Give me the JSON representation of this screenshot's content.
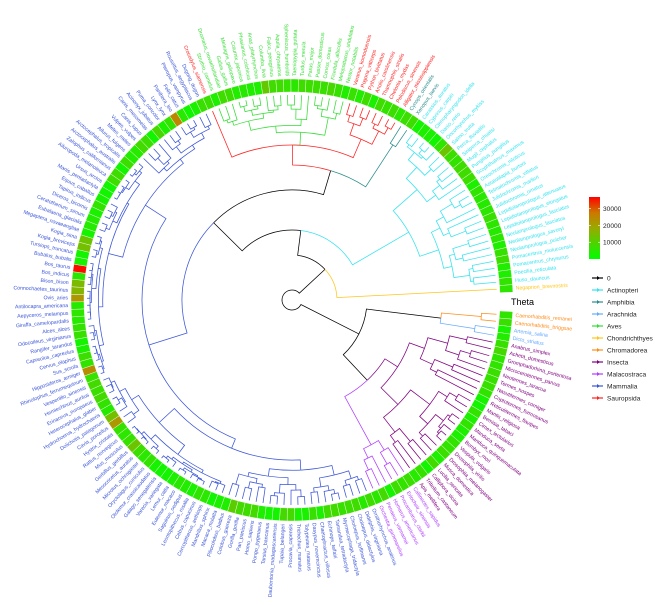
{
  "theta_label": "Theta",
  "colorbar": {
    "ticks": [
      "10000",
      "20000",
      "30000"
    ],
    "tick_values": [
      10000,
      20000,
      30000
    ],
    "min": 0,
    "max": 37000,
    "colors": [
      "#00ff00",
      "#99aa00",
      "#cc7700",
      "#ff0000"
    ]
  },
  "legend": [
    {
      "label": "0",
      "color": "#000000"
    },
    {
      "label": "Actinopteri",
      "color": "#33e3f0"
    },
    {
      "label": "Amphibia",
      "color": "#2b8c8c"
    },
    {
      "label": "Arachnida",
      "color": "#66aaff"
    },
    {
      "label": "Aves",
      "color": "#33dd33"
    },
    {
      "label": "Chondrichthyes",
      "color": "#ffc61a"
    },
    {
      "label": "Chromadorea",
      "color": "#ff8c1a"
    },
    {
      "label": "Insecta",
      "color": "#800080"
    },
    {
      "label": "Malacostraca",
      "color": "#b03cff"
    },
    {
      "label": "Mammalia",
      "color": "#3a55d8"
    },
    {
      "label": "Sauropsida",
      "color": "#ff2020"
    }
  ],
  "tips": [
    {
      "label": "Caenorhabditis_remanei",
      "class": "Chromadorea"
    },
    {
      "label": "Caenorhabditis_briggsae",
      "class": "Chromadorea"
    },
    {
      "label": "Artemia_salina",
      "class": "Arachnida"
    },
    {
      "label": "Dicto_striatus",
      "class": "Arachnida"
    },
    {
      "label": "Anabrus_simplex",
      "class": "Insecta"
    },
    {
      "label": "Acheta_domesticus",
      "class": "Insecta"
    },
    {
      "label": "Gromphadorhina_portentosa",
      "class": "Insecta"
    },
    {
      "label": "Microcerotermes_parvus",
      "class": "Insecta"
    },
    {
      "label": "Neotermes_taracua",
      "class": "Insecta"
    },
    {
      "label": "Termes_hospes",
      "class": "Insecta"
    },
    {
      "label": "Nasutitermes_corniger",
      "class": "Insecta"
    },
    {
      "label": "Coptotermes_formosanus",
      "class": "Insecta"
    },
    {
      "label": "Reticulitermes_flavipes",
      "class": "Insecta"
    },
    {
      "label": "Mantis_religiosa",
      "class": "Insecta"
    },
    {
      "label": "Bemisia_tabaci",
      "class": "Insecta"
    },
    {
      "label": "Cimex_lectularius",
      "class": "Insecta"
    },
    {
      "label": "Manduca_sexta",
      "class": "Insecta"
    },
    {
      "label": "Manduca_quinquemaculata",
      "class": "Insecta"
    },
    {
      "label": "Bombyx_mori",
      "class": "Insecta"
    },
    {
      "label": "Vespula_vulgaris",
      "class": "Insecta"
    },
    {
      "label": "Drosophila_virilis",
      "class": "Insecta"
    },
    {
      "label": "Drosophila_melanogaster",
      "class": "Insecta"
    },
    {
      "label": "Musca_domestica",
      "class": "Insecta"
    },
    {
      "label": "Lucilia_sericata",
      "class": "Insecta"
    },
    {
      "label": "Calliphora_vicina",
      "class": "Insecta"
    },
    {
      "label": "Tribolium_castaneum",
      "class": "Insecta"
    },
    {
      "label": "Apis_mellifera",
      "class": "Insecta"
    },
    {
      "label": "Callinectes_sapidus",
      "class": "Malacostraca"
    },
    {
      "label": "Eriocheir_sinensis",
      "class": "Malacostraca"
    },
    {
      "label": "Procambarus_clarkii",
      "class": "Malacostraca"
    },
    {
      "label": "Homarus_americanus",
      "class": "Malacostraca"
    },
    {
      "label": "Penaeus_vannamei",
      "class": "Malacostraca"
    },
    {
      "label": "Orchestia_gammarellus",
      "class": "Malacostraca"
    },
    {
      "label": "Ornithorhynchus_anatinus",
      "class": "Mammalia"
    },
    {
      "label": "Didelphis_virginiana",
      "class": "Mammalia"
    },
    {
      "label": "Choloepus_didactylus",
      "class": "Mammalia"
    },
    {
      "label": "Choloepus_hoffmanni",
      "class": "Mammalia"
    },
    {
      "label": "Myrmecophaga_tridactyla",
      "class": "Mammalia"
    },
    {
      "label": "Tamandua_tetradactyla",
      "class": "Mammalia"
    },
    {
      "label": "Echinops_telfairi",
      "class": "Mammalia"
    },
    {
      "label": "Chaetophractus_villosus",
      "class": "Mammalia"
    },
    {
      "label": "Dasypus_novemcinctus",
      "class": "Mammalia"
    },
    {
      "label": "Tolypeutes_matacus",
      "class": "Mammalia"
    },
    {
      "label": "Trichechus_manatus",
      "class": "Mammalia"
    },
    {
      "label": "Procavia_capensis",
      "class": "Mammalia"
    },
    {
      "label": "Tupaia_belangeri",
      "class": "Mammalia"
    },
    {
      "label": "Daubentonia_madagascariensis",
      "class": "Mammalia"
    },
    {
      "label": "Tarsius_bancanus",
      "class": "Mammalia"
    },
    {
      "label": "Pongo_pygmaeus",
      "class": "Mammalia"
    },
    {
      "label": "Homo_sapiens",
      "class": "Mammalia"
    },
    {
      "label": "Pan_paniscus",
      "class": "Mammalia"
    },
    {
      "label": "Gorilla_gorilla",
      "class": "Mammalia"
    },
    {
      "label": "Colobus_guereza",
      "class": "Mammalia"
    },
    {
      "label": "Piliocolobus_badius",
      "class": "Mammalia"
    },
    {
      "label": "Macaca_mulatta",
      "class": "Mammalia"
    },
    {
      "label": "Mandrillus_sphinx",
      "class": "Mammalia"
    },
    {
      "label": "Cercopithecus_aethiops",
      "class": "Mammalia"
    },
    {
      "label": "Cebus_capucinus",
      "class": "Mammalia"
    },
    {
      "label": "Leontopithecus_rosalia",
      "class": "Mammalia"
    },
    {
      "label": "Saguinus_oedipus",
      "class": "Mammalia"
    },
    {
      "label": "Eulemur_macaco",
      "class": "Mammalia"
    },
    {
      "label": "Lemur_catta",
      "class": "Mammalia"
    },
    {
      "label": "Varecia_variegata",
      "class": "Mammalia"
    },
    {
      "label": "Galago_senegalensis",
      "class": "Mammalia"
    },
    {
      "label": "Otolemur_crassicaudatus",
      "class": "Mammalia"
    },
    {
      "label": "Oryctolagus_cuniculus",
      "class": "Mammalia"
    },
    {
      "label": "Microtus_ochrogaster",
      "class": "Mammalia"
    },
    {
      "label": "Mesocricetus_auratus",
      "class": "Mammalia"
    },
    {
      "label": "Gerbillus_gerbillus",
      "class": "Mammalia"
    },
    {
      "label": "Mus_musculus",
      "class": "Mammalia"
    },
    {
      "label": "Rattus_norvegicus",
      "class": "Mammalia"
    },
    {
      "label": "Hystrix_cristata",
      "class": "Mammalia"
    },
    {
      "label": "Cavia_porcellus",
      "class": "Mammalia"
    },
    {
      "label": "Dolichotis_patagonum",
      "class": "Mammalia"
    },
    {
      "label": "Hydrochoerus_hydrochaeris",
      "class": "Mammalia"
    },
    {
      "label": "Heterocephalus_glaber",
      "class": "Mammalia"
    },
    {
      "label": "Erinaceus_europaeus",
      "class": "Mammalia"
    },
    {
      "label": "Hemiechinus_auritus",
      "class": "Mammalia"
    },
    {
      "label": "Vespertilio_sinensis",
      "class": "Mammalia"
    },
    {
      "label": "Rhinolophus_ferrumequinum",
      "class": "Mammalia"
    },
    {
      "label": "Hipposideros_armiger",
      "class": "Mammalia"
    },
    {
      "label": "Sus_scrofa",
      "class": "Mammalia"
    },
    {
      "label": "Cervus_elaphus",
      "class": "Mammalia"
    },
    {
      "label": "Capreolus_capreolus",
      "class": "Mammalia"
    },
    {
      "label": "Rangifer_tarandus",
      "class": "Mammalia"
    },
    {
      "label": "Odocoileus_virginianus",
      "class": "Mammalia"
    },
    {
      "label": "Alces_alces",
      "class": "Mammalia"
    },
    {
      "label": "Giraffa_camelopardalis",
      "class": "Mammalia"
    },
    {
      "label": "Aepyceros_melampus",
      "class": "Mammalia"
    },
    {
      "label": "Antilocapra_americana",
      "class": "Mammalia"
    },
    {
      "label": "Ovis_aries",
      "class": "Mammalia"
    },
    {
      "label": "Connochaetes_taurinus",
      "class": "Mammalia"
    },
    {
      "label": "Bison_bison",
      "class": "Mammalia"
    },
    {
      "label": "Bos_indicus",
      "class": "Mammalia"
    },
    {
      "label": "Bos_taurus",
      "class": "Mammalia"
    },
    {
      "label": "Bubalus_bubalis",
      "class": "Mammalia"
    },
    {
      "label": "Tursiops_truncatus",
      "class": "Mammalia"
    },
    {
      "label": "Kogia_breviceps",
      "class": "Mammalia"
    },
    {
      "label": "Kogia_sima",
      "class": "Mammalia"
    },
    {
      "label": "Megaptera_novaeangliae",
      "class": "Mammalia"
    },
    {
      "label": "Eubalaena_glacialis",
      "class": "Mammalia"
    },
    {
      "label": "Ceratotherium_simum",
      "class": "Mammalia"
    },
    {
      "label": "Diceros_bicornis",
      "class": "Mammalia"
    },
    {
      "label": "Tapirus_indicus",
      "class": "Mammalia"
    },
    {
      "label": "Equus_caballus",
      "class": "Mammalia"
    },
    {
      "label": "Manis_pentadactyla",
      "class": "Mammalia"
    },
    {
      "label": "Ursus_arctos",
      "class": "Mammalia"
    },
    {
      "label": "Ailuropoda_melanoleuca",
      "class": "Mammalia"
    },
    {
      "label": "Zalophus_californianus",
      "class": "Mammalia"
    },
    {
      "label": "Arctocephalus_australis",
      "class": "Mammalia"
    },
    {
      "label": "Arctocephalus_tropicalis",
      "class": "Mammalia"
    },
    {
      "label": "Ailurus_fulgens",
      "class": "Mammalia"
    },
    {
      "label": "Meles_meles",
      "class": "Mammalia"
    },
    {
      "label": "Vulpes_vulpes",
      "class": "Mammalia"
    },
    {
      "label": "Canis_lupus",
      "class": "Mammalia"
    },
    {
      "label": "Canis_mesomelas",
      "class": "Mammalia"
    },
    {
      "label": "Acinonyx_jubatus",
      "class": "Mammalia"
    },
    {
      "label": "Puma_concolor",
      "class": "Mammalia"
    },
    {
      "label": "Lynx_lynx",
      "class": "Mammalia"
    },
    {
      "label": "Panthera_leo",
      "class": "Mammalia"
    },
    {
      "label": "Felis_catus",
      "class": "Mammalia"
    },
    {
      "label": "Pteropus_vampyrus",
      "class": "Mammalia"
    },
    {
      "label": "Rousettus_aegyptiacus",
      "class": "Mammalia"
    },
    {
      "label": "Dugong_dugon",
      "class": "Mammalia"
    },
    {
      "label": "Crocodylus_siamensis",
      "class": "Sauropsida"
    },
    {
      "label": "Struthio_camelus",
      "class": "Aves"
    },
    {
      "label": "Dromaius_novaehollandiae",
      "class": "Aves"
    },
    {
      "label": "Gallus_gallus",
      "class": "Aves"
    },
    {
      "label": "Meleagris_gallopavo",
      "class": "Aves"
    },
    {
      "label": "Coturnix_japonica",
      "class": "Aves"
    },
    {
      "label": "Phasianus_colchicus",
      "class": "Aves"
    },
    {
      "label": "Anas_platyrhynchos",
      "class": "Aves"
    },
    {
      "label": "Columba_livia",
      "class": "Aves"
    },
    {
      "label": "Falco_peregrinus",
      "class": "Aves"
    },
    {
      "label": "Aquila_chrysaetos",
      "class": "Aves"
    },
    {
      "label": "Spheniscus_humboldti",
      "class": "Aves"
    },
    {
      "label": "Taeniopygia_guttata",
      "class": "Aves"
    },
    {
      "label": "Turdus_merula",
      "class": "Aves"
    },
    {
      "label": "Parus_major",
      "class": "Aves"
    },
    {
      "label": "Passer_domesticus",
      "class": "Aves"
    },
    {
      "label": "Corvus_corax",
      "class": "Aves"
    },
    {
      "label": "Ficedula_albicollis",
      "class": "Aves"
    },
    {
      "label": "Melopsittacus_undulatus",
      "class": "Aves"
    },
    {
      "label": "Nestor_notabilis",
      "class": "Aves"
    },
    {
      "label": "Varanus_komodoensis",
      "class": "Sauropsida"
    },
    {
      "label": "Pogona_vitticeps",
      "class": "Sauropsida"
    },
    {
      "label": "Python_bivittatus",
      "class": "Sauropsida"
    },
    {
      "label": "Anolis_carolinensis",
      "class": "Sauropsida"
    },
    {
      "label": "Thamnophis_sirtalis",
      "class": "Sauropsida"
    },
    {
      "label": "Chelonia_mydas",
      "class": "Sauropsida"
    },
    {
      "label": "Pelodiscus_sinensis",
      "class": "Sauropsida"
    },
    {
      "label": "Alligator_mississippiensis",
      "class": "Sauropsida"
    },
    {
      "label": "Cynops_orientalis",
      "class": "Amphibia"
    },
    {
      "label": "Xenopus_laevis",
      "class": "Amphibia"
    },
    {
      "label": "Carassius_auratus",
      "class": "Actinopteri"
    },
    {
      "label": "Cyprinus_carpio",
      "class": "Actinopteri"
    },
    {
      "label": "Ctenopharyngodon_idella",
      "class": "Actinopteri"
    },
    {
      "label": "Danio_rerio",
      "class": "Actinopteri"
    },
    {
      "label": "Oncorhynchus_mykiss",
      "class": "Actinopteri"
    },
    {
      "label": "Salmo_trutta",
      "class": "Actinopteri"
    },
    {
      "label": "Perca_fluviatilis",
      "class": "Actinopteri"
    },
    {
      "label": "Siniperca_chuatsi",
      "class": "Actinopteri"
    },
    {
      "label": "Mugil_cephalus",
      "class": "Actinopteri"
    },
    {
      "label": "Pungitius_pungitius",
      "class": "Actinopteri"
    },
    {
      "label": "Scophthalmus_maximus",
      "class": "Actinopteri"
    },
    {
      "label": "Oreochromis_niloticus",
      "class": "Actinopteri"
    },
    {
      "label": "Astatotilapia_burtoni",
      "class": "Actinopteri"
    },
    {
      "label": "Telmatochromis_vittatus",
      "class": "Actinopteri"
    },
    {
      "label": "Julidochromis_marlieri",
      "class": "Actinopteri"
    },
    {
      "label": "Julidochromis_ornatus",
      "class": "Actinopteri"
    },
    {
      "label": "Lepidiolamprologus_attenuatus",
      "class": "Actinopteri"
    },
    {
      "label": "Lepidiolamprologus_elongatus",
      "class": "Actinopteri"
    },
    {
      "label": "Lepidiolamprologus_fasciatus",
      "class": "Actinopteri"
    },
    {
      "label": "Neolamprologus_fasciatus",
      "class": "Actinopteri"
    },
    {
      "label": "Neolamprologus_savoryi",
      "class": "Actinopteri"
    },
    {
      "label": "Neolamprologus_pulcher",
      "class": "Actinopteri"
    },
    {
      "label": "Pomacentrus_moluccensis",
      "class": "Actinopteri"
    },
    {
      "label": "Pomacentrus_chrysurus",
      "class": "Actinopteri"
    },
    {
      "label": "Poecilia_reticulata",
      "class": "Actinopteri"
    },
    {
      "label": "Huso_dauricus",
      "class": "Actinopteri"
    },
    {
      "label": "Negaprion_brevirostris",
      "class": "Chondrichthyes"
    }
  ],
  "heat_values_high": {
    "Bos_taurus": 36000,
    "Ovis_aries": 22000,
    "Hipposideros_armiger": 24000,
    "Panthera_leo": 25000,
    "Cavia_porcellus": 22000,
    "Dolichotis_patagonum": 14000,
    "Kogia_breviceps": 14000,
    "Kogia_sima": 13000,
    "Bison_bison": 15000,
    "Gerbillus_gerbillus": 13000,
    "Columba_livia": 12000,
    "Salmo_trutta": 13000,
    "Connochaetes_taurinus": 16000,
    "Colobus_guereza": 11000
  }
}
